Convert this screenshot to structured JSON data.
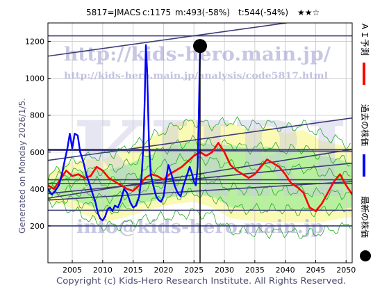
{
  "header": {
    "code_label": "5817=JMACS",
    "current": "c:1175",
    "max_stat": "m:493(-58%)",
    "target_stat": "t:544(-54%)",
    "stars": "★★☆"
  },
  "side_label": "Generated on Monday 2026/1/5.",
  "footer": "Copyright (c) Kids-Hero Research Institute. All Rights Reserved.",
  "watermarks": {
    "url": "http://kids-hero.main.jp/",
    "analysis_url": "http://kids-hero.main.jp/analysis/code5817.html",
    "big": "KHRI",
    "email": "info@kids-hero.main.jp"
  },
  "legend": [
    {
      "label": "ＡＩ予測",
      "color": "#ff0000"
    },
    {
      "label": "過去の株価",
      "color": "#0000ff"
    },
    {
      "label": "最新の株価",
      "color": "#000000"
    }
  ],
  "chart_data": {
    "type": "line",
    "xlim": [
      2001,
      2051
    ],
    "ylim": [
      0,
      1300
    ],
    "x_ticks": [
      2005,
      2010,
      2015,
      2020,
      2025,
      2030,
      2035,
      2040,
      2045,
      2050
    ],
    "y_ticks": [
      200,
      400,
      600,
      800,
      1000,
      1200
    ],
    "grid": true,
    "colors": {
      "past": "#0000ff",
      "forecast": "#ff0000",
      "green": "#22aa22",
      "band_green": "#b9f0a0",
      "band_yellow": "#fafab4",
      "trend": "#3c3c78",
      "latest": "#000000"
    },
    "latest": {
      "x": 2026.0,
      "y": 1175
    },
    "past_series": [
      [
        2001.0,
        400
      ],
      [
        2001.6,
        370
      ],
      [
        2002.2,
        390
      ],
      [
        2002.8,
        420
      ],
      [
        2003.3,
        480
      ],
      [
        2003.8,
        560
      ],
      [
        2004.2,
        620
      ],
      [
        2004.6,
        700
      ],
      [
        2005.0,
        620
      ],
      [
        2005.4,
        700
      ],
      [
        2005.9,
        690
      ],
      [
        2006.3,
        600
      ],
      [
        2006.8,
        550
      ],
      [
        2007.3,
        480
      ],
      [
        2007.8,
        430
      ],
      [
        2008.3,
        380
      ],
      [
        2008.8,
        330
      ],
      [
        2009.2,
        270
      ],
      [
        2009.6,
        240
      ],
      [
        2010.0,
        230
      ],
      [
        2010.4,
        250
      ],
      [
        2010.8,
        290
      ],
      [
        2011.2,
        300
      ],
      [
        2011.6,
        280
      ],
      [
        2012.0,
        310
      ],
      [
        2012.5,
        300
      ],
      [
        2013.0,
        340
      ],
      [
        2013.5,
        400
      ],
      [
        2014.0,
        380
      ],
      [
        2014.5,
        330
      ],
      [
        2015.0,
        300
      ],
      [
        2015.5,
        310
      ],
      [
        2016.0,
        360
      ],
      [
        2016.4,
        470
      ],
      [
        2016.7,
        640
      ],
      [
        2016.9,
        880
      ],
      [
        2017.1,
        1180
      ],
      [
        2017.3,
        1040
      ],
      [
        2017.6,
        660
      ],
      [
        2017.9,
        480
      ],
      [
        2018.3,
        420
      ],
      [
        2018.8,
        360
      ],
      [
        2019.2,
        340
      ],
      [
        2019.6,
        330
      ],
      [
        2020.0,
        360
      ],
      [
        2020.4,
        450
      ],
      [
        2020.8,
        530
      ],
      [
        2021.3,
        480
      ],
      [
        2021.8,
        420
      ],
      [
        2022.3,
        380
      ],
      [
        2022.8,
        360
      ],
      [
        2023.3,
        420
      ],
      [
        2023.8,
        470
      ],
      [
        2024.3,
        520
      ],
      [
        2024.7,
        480
      ],
      [
        2025.0,
        440
      ],
      [
        2025.3,
        420
      ],
      [
        2025.6,
        520
      ],
      [
        2025.8,
        800
      ],
      [
        2026.0,
        1175
      ]
    ],
    "forecast_series": [
      [
        2001.0,
        420
      ],
      [
        2002.0,
        400
      ],
      [
        2003.0,
        450
      ],
      [
        2004.0,
        500
      ],
      [
        2005.0,
        470
      ],
      [
        2006.0,
        480
      ],
      [
        2007.0,
        460
      ],
      [
        2008.0,
        470
      ],
      [
        2009.0,
        520
      ],
      [
        2010.0,
        500
      ],
      [
        2011.0,
        460
      ],
      [
        2012.0,
        440
      ],
      [
        2013.0,
        420
      ],
      [
        2014.0,
        400
      ],
      [
        2015.0,
        390
      ],
      [
        2016.0,
        420
      ],
      [
        2017.0,
        460
      ],
      [
        2018.0,
        480
      ],
      [
        2019.0,
        470
      ],
      [
        2020.0,
        450
      ],
      [
        2021.0,
        480
      ],
      [
        2022.0,
        500
      ],
      [
        2023.0,
        520
      ],
      [
        2024.0,
        550
      ],
      [
        2025.0,
        580
      ],
      [
        2026.0,
        600
      ],
      [
        2027.0,
        580
      ],
      [
        2028.0,
        600
      ],
      [
        2029.0,
        650
      ],
      [
        2030.0,
        600
      ],
      [
        2031.0,
        530
      ],
      [
        2032.0,
        500
      ],
      [
        2033.0,
        480
      ],
      [
        2034.0,
        460
      ],
      [
        2035.0,
        480
      ],
      [
        2036.0,
        520
      ],
      [
        2037.0,
        560
      ],
      [
        2038.0,
        540
      ],
      [
        2039.0,
        520
      ],
      [
        2040.0,
        480
      ],
      [
        2041.0,
        430
      ],
      [
        2042.0,
        410
      ],
      [
        2043.0,
        380
      ],
      [
        2044.0,
        300
      ],
      [
        2045.0,
        280
      ],
      [
        2046.0,
        320
      ],
      [
        2047.0,
        380
      ],
      [
        2048.0,
        440
      ],
      [
        2049.0,
        480
      ],
      [
        2050.0,
        420
      ],
      [
        2051.0,
        370
      ]
    ],
    "band_outer": {
      "x": [
        2001,
        2004,
        2007,
        2010,
        2013,
        2016,
        2019,
        2022,
        2025,
        2028,
        2031,
        2034,
        2037,
        2040,
        2043,
        2046,
        2049,
        2051
      ],
      "upper": [
        480,
        540,
        560,
        560,
        600,
        640,
        700,
        760,
        780,
        740,
        760,
        720,
        740,
        700,
        720,
        660,
        640,
        620
      ],
      "lower": [
        330,
        310,
        260,
        220,
        240,
        270,
        300,
        320,
        330,
        300,
        240,
        230,
        220,
        220,
        220,
        220,
        240,
        250
      ]
    },
    "band_inner": {
      "x": [
        2001,
        2004,
        2007,
        2010,
        2013,
        2016,
        2019,
        2022,
        2025,
        2028,
        2031,
        2034,
        2037,
        2040,
        2043,
        2046,
        2049,
        2051
      ],
      "upper": [
        440,
        480,
        500,
        500,
        520,
        560,
        600,
        640,
        660,
        640,
        640,
        620,
        630,
        610,
        620,
        580,
        560,
        540
      ],
      "lower": [
        370,
        350,
        320,
        280,
        290,
        320,
        340,
        360,
        380,
        360,
        300,
        290,
        290,
        290,
        280,
        280,
        290,
        300
      ]
    },
    "green_offsets": [
      -70,
      -40,
      -15,
      15,
      40,
      70
    ],
    "trend_lines": [
      [
        [
          2001,
          1120
        ],
        [
          2051,
          1350
        ]
      ],
      [
        [
          2001,
          555
        ],
        [
          2051,
          785
        ]
      ],
      [
        [
          2001,
          350
        ],
        [
          2051,
          615
        ]
      ],
      [
        [
          2001,
          375
        ],
        [
          2051,
          540
        ]
      ],
      [
        [
          2001,
          340
        ],
        [
          2051,
          440
        ]
      ],
      [
        [
          2001,
          1230
        ],
        [
          2051,
          1230
        ]
      ],
      [
        [
          2001,
          615
        ],
        [
          2051,
          615
        ]
      ],
      [
        [
          2001,
          610
        ],
        [
          2051,
          605
        ]
      ],
      [
        [
          2001,
          450
        ],
        [
          2051,
          450
        ]
      ],
      [
        [
          2001,
          430
        ],
        [
          2051,
          430
        ]
      ],
      [
        [
          2001,
          285
        ],
        [
          2051,
          285
        ]
      ],
      [
        [
          2001,
          200
        ],
        [
          2051,
          200
        ]
      ]
    ]
  }
}
